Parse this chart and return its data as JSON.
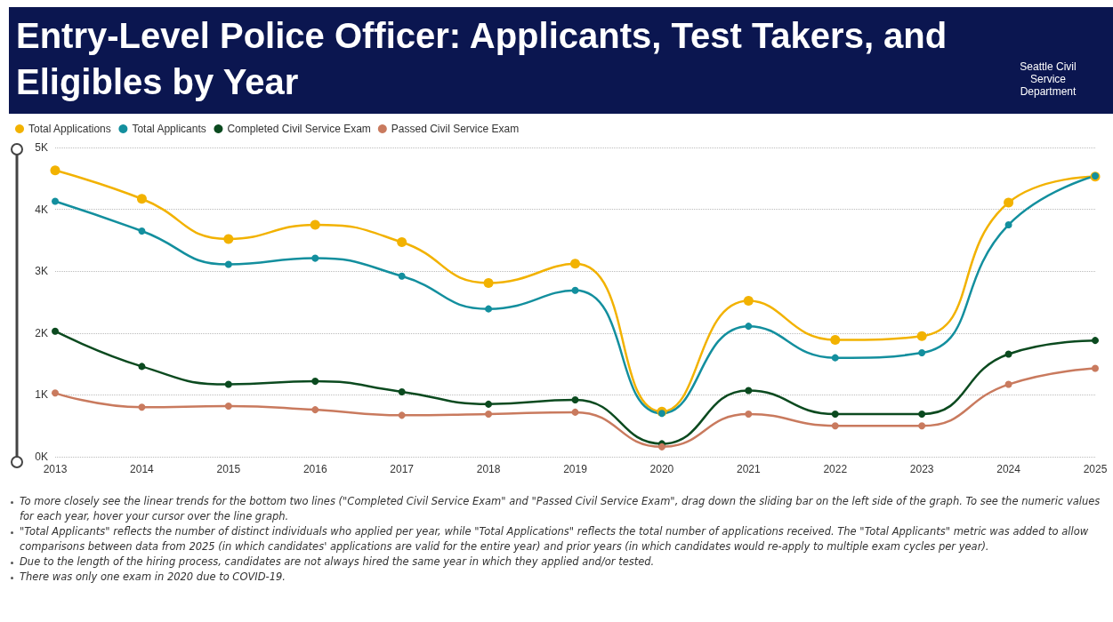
{
  "chart_data": {
    "type": "line",
    "title": "Entry-Level Police Officer: Applicants, Test Takers, and Eligibles by Year",
    "categories": [
      "2013",
      "2014",
      "2015",
      "2016",
      "2017",
      "2018",
      "2019",
      "2020",
      "2021",
      "2022",
      "2023",
      "2024",
      "2025"
    ],
    "series": [
      {
        "name": "Total Applications",
        "color": "#f2b200",
        "values": [
          4630,
          4170,
          3520,
          3750,
          3470,
          2810,
          3120,
          730,
          2520,
          1890,
          1950,
          4110,
          4530
        ]
      },
      {
        "name": "Total Applicants",
        "color": "#138f9e",
        "values": [
          4130,
          3650,
          3110,
          3210,
          2920,
          2390,
          2690,
          700,
          2110,
          1600,
          1680,
          3750,
          4540
        ]
      },
      {
        "name": "Completed Civil Service Exam",
        "color": "#0b4a1f",
        "values": [
          2030,
          1460,
          1170,
          1220,
          1050,
          850,
          920,
          210,
          1070,
          690,
          690,
          1660,
          1880
        ]
      },
      {
        "name": "Passed Civil Service Exam",
        "color": "#c97a5e",
        "values": [
          1030,
          800,
          820,
          760,
          670,
          690,
          720,
          160,
          690,
          500,
          500,
          1170,
          1430
        ]
      }
    ],
    "ylim": [
      0,
      5000
    ],
    "yticks": [
      {
        "value": 0,
        "label": "0K"
      },
      {
        "value": 1000,
        "label": "1K"
      },
      {
        "value": 2000,
        "label": "2K"
      },
      {
        "value": 3000,
        "label": "3K"
      },
      {
        "value": 4000,
        "label": "4K"
      },
      {
        "value": 5000,
        "label": "5K"
      }
    ],
    "grid": "y",
    "legend": "top left",
    "marker": "circle",
    "line_style": "solid",
    "annotations": [
      "Seattle Civil Service Department",
      "To more closely see the linear trends for the bottom two lines (\"Completed Civil Service Exam\" and \"Passed Civil Service Exam\", drag down the sliding bar on the left side of the graph. To see the numeric values for each year, hover your cursor over the line graph.",
      "\"Total Applicants\" reflects the number of distinct individuals who applied per year, while \"Total Applications\" reflects the total number of applications received. The \"Total Applicants\" metric was added to allow comparisons between data from 2025 (in which candidates' applications are valid for the entire year) and prior years (in which candidates would re-apply to multiple exam cycles per year).",
      "Due to the length of the hiring process, candidates are not always hired the same year in which they applied and/or tested.",
      "There was only one exam in 2020 due to COVID-19."
    ]
  }
}
